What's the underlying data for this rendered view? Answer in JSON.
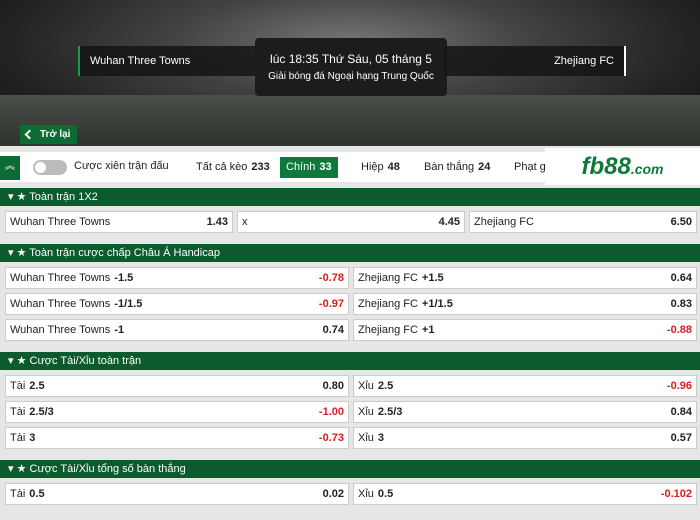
{
  "header": {
    "home": "Wuhan Three Towns",
    "kickoff": "lúc 18:35 Thứ Sáu, 05 tháng 5",
    "league": "Giải bóng đá Ngoại hạng Trung Quốc",
    "away": "Zhejiang FC",
    "back": "Trở lại"
  },
  "toolbar": {
    "parlay": "Cược xiên trận đấu",
    "active_tab": 1,
    "tabs": [
      {
        "label": "Tất cả kèo",
        "count": 233
      },
      {
        "label": "Chính",
        "count": 33
      },
      {
        "label": "Hiệp",
        "count": 48
      },
      {
        "label": "Bàn thắng",
        "count": 24
      },
      {
        "label": "Phạt gó"
      }
    ]
  },
  "logo": {
    "name": "fb88",
    "domain": ".com"
  },
  "sections": [
    {
      "title": "Toàn trận 1X2",
      "rows": [
        [
          {
            "label": "Wuhan Three Towns",
            "odds": "1.43"
          },
          {
            "label": "x",
            "odds": "4.45"
          },
          {
            "label": "Zhejiang FC",
            "odds": "6.50"
          }
        ]
      ]
    },
    {
      "title": "Toàn trận cược chấp Châu Á Handicap",
      "rows": [
        [
          {
            "label": "Wuhan Three Towns",
            "line": "-1.5",
            "odds": "-0.78"
          },
          {
            "label": "Zhejiang FC",
            "line": "+1.5",
            "odds": "0.64"
          }
        ],
        [
          {
            "label": "Wuhan Three Towns",
            "line": "-1/1.5",
            "odds": "-0.97"
          },
          {
            "label": "Zhejiang FC",
            "line": "+1/1.5",
            "odds": "0.83"
          }
        ],
        [
          {
            "label": "Wuhan Three Towns",
            "line": "-1",
            "odds": "0.74"
          },
          {
            "label": "Zhejiang FC",
            "line": "+1",
            "odds": "-0.88"
          }
        ]
      ]
    },
    {
      "title": "Cược Tài/Xỉu toàn trận",
      "rows": [
        [
          {
            "label": "Tài",
            "line": "2.5",
            "odds": "0.80"
          },
          {
            "label": "Xỉu",
            "line": "2.5",
            "odds": "-0.96"
          }
        ],
        [
          {
            "label": "Tài",
            "line": "2.5/3",
            "odds": "-1.00"
          },
          {
            "label": "Xỉu",
            "line": "2.5/3",
            "odds": "0.84"
          }
        ],
        [
          {
            "label": "Tài",
            "line": "3",
            "odds": "-0.73"
          },
          {
            "label": "Xỉu",
            "line": "3",
            "odds": "0.57"
          }
        ]
      ]
    },
    {
      "title": "Cược Tài/Xỉu tổng số bàn thắng",
      "rows": [
        [
          {
            "label": "Tài",
            "line": "0.5",
            "odds": "0.02"
          },
          {
            "label": "Xỉu",
            "line": "0.5",
            "odds": "-0.102"
          }
        ]
      ]
    }
  ]
}
